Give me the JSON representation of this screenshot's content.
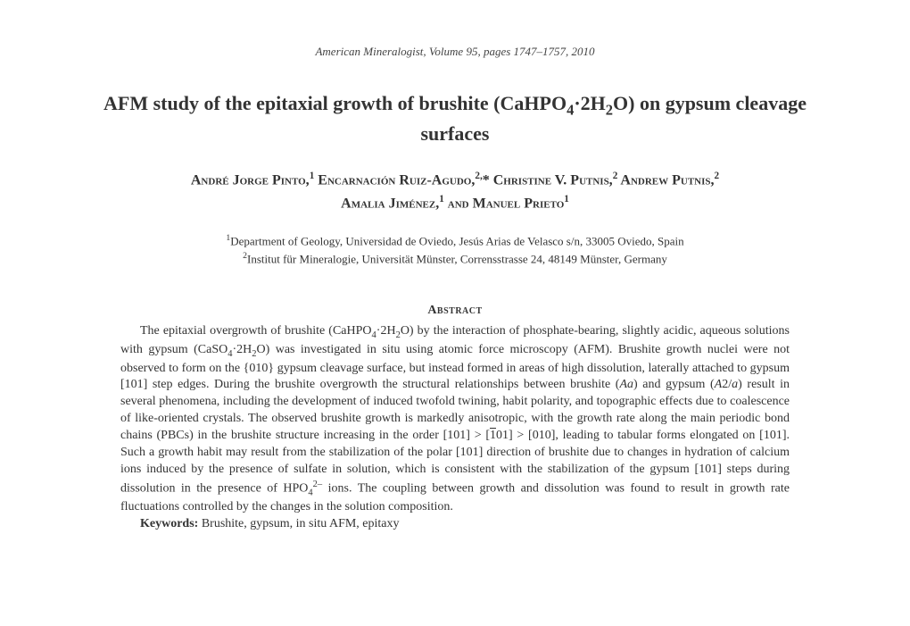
{
  "journal_info": "American Mineralogist, Volume 95, pages 1747–1757, 2010",
  "title_part1": "AFM study of the epitaxial growth of brushite (CaHPO",
  "title_sub1": "4",
  "title_part2": "·2H",
  "title_sub2": "2",
  "title_part3": "O) on gypsum cleavage surfaces",
  "authors_line1_a": "André Jorge Pinto,",
  "authors_sup1": "1",
  "authors_line1_b": " Encarnación Ruiz-Agudo,",
  "authors_sup2": "2,",
  "authors_line1_c": "* Christine V. Putnis,",
  "authors_sup3": "2",
  "authors_line1_d": " Andrew Putnis,",
  "authors_sup4": "2",
  "authors_line2_a": "Amalia Jiménez,",
  "authors_sup5": "1",
  "authors_line2_b": " and Manuel Prieto",
  "authors_sup6": "1",
  "affil1_sup": "1",
  "affil1": "Department of Geology, Universidad de Oviedo, Jesús Arias de Velasco s/n, 33005 Oviedo, Spain",
  "affil2_sup": "2",
  "affil2": "Institut für Mineralogie, Universität Münster, Corrensstrasse 24, 48149 Münster, Germany",
  "abstract_heading": "Abstract",
  "abs_p1a": "The epitaxial overgrowth of brushite (CaHPO",
  "abs_s1": "4",
  "abs_p1b": "·2H",
  "abs_s2": "2",
  "abs_p1c": "O) by the interaction of phosphate-bearing, slightly acidic, aqueous solutions with gypsum (CaSO",
  "abs_s3": "4",
  "abs_p1d": "·2H",
  "abs_s4": "2",
  "abs_p1e": "O) was investigated in situ using atomic force microscopy (AFM). Brushite growth nuclei were not observed to form on the {010} gypsum cleavage surface, but instead formed in areas of high dissolution, laterally attached to gypsum [101] step edges. During the brushite overgrowth the structural relationships between brushite (",
  "abs_i1": "Aa",
  "abs_p1f": ") and gypsum (",
  "abs_i2": "A",
  "abs_p1g": "2/",
  "abs_i3": "a",
  "abs_p1h": ") result in several phenomena, including the development of induced twofold twining, habit polarity, and topographic effects due to coalescence of like-oriented crystals. The observed brushite growth is markedly anisotropic, with the growth rate along the main periodic bond chains (PBCs) in the brushite structure increasing in the order [101] > [",
  "abs_ov1": "1",
  "abs_p1i": "01] > [010], leading to tabular forms elongated on [101]. Such a growth habit may result from the stabilization of the polar [101] direction of brushite due to changes in hydration of calcium ions induced by the presence of sulfate in solution, which is consistent with the stabilization of the gypsum [101] steps during dissolution in the presence of HPO",
  "abs_s5": "4",
  "abs_sup1": "2–",
  "abs_p1j": " ions. The coupling between growth and dissolution was found to result in growth rate fluctuations controlled by the changes in the solution composition.",
  "keywords_label": "Keywords:",
  "keywords_text": " Brushite, gypsum, in situ AFM, epitaxy"
}
